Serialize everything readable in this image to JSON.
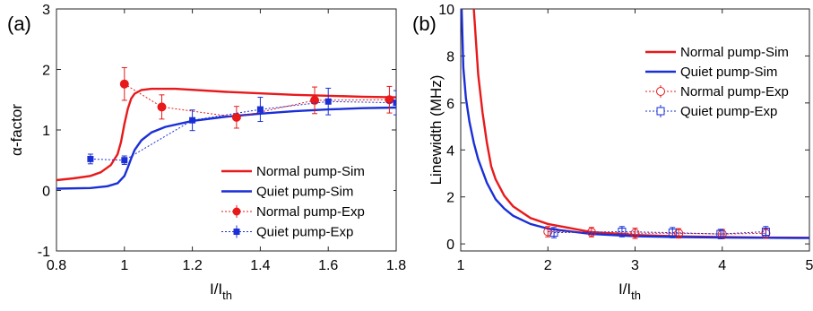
{
  "chart_data": [
    {
      "panel_label": "(a)",
      "type": "line",
      "xlabel": "I/I",
      "xlabel_sub": "th",
      "ylabel": "α-factor",
      "xlim": [
        0.8,
        1.8
      ],
      "ylim": [
        -1,
        3
      ],
      "xticks": [
        "0.8",
        "1",
        "1.2",
        "1.4",
        "1.6",
        "1.8"
      ],
      "yticks": [
        "-1",
        "0",
        "1",
        "2",
        "3"
      ],
      "legend_position": "bottom-right",
      "series": [
        {
          "name": "Normal pump-Sim",
          "style": "solid",
          "color": "#e8191b",
          "x": [
            0.8,
            0.85,
            0.9,
            0.93,
            0.96,
            0.98,
            0.99,
            1.0,
            1.01,
            1.02,
            1.03,
            1.05,
            1.08,
            1.15,
            1.3,
            1.5,
            1.7,
            1.8
          ],
          "y": [
            0.17,
            0.2,
            0.24,
            0.3,
            0.42,
            0.6,
            0.8,
            1.1,
            1.35,
            1.52,
            1.6,
            1.66,
            1.68,
            1.68,
            1.63,
            1.58,
            1.55,
            1.54
          ]
        },
        {
          "name": "Quiet pump-Sim",
          "style": "solid",
          "color": "#1a2fd6",
          "x": [
            0.8,
            0.9,
            0.95,
            0.98,
            1.0,
            1.01,
            1.02,
            1.03,
            1.05,
            1.08,
            1.12,
            1.2,
            1.3,
            1.4,
            1.5,
            1.6,
            1.7,
            1.8
          ],
          "y": [
            0.03,
            0.04,
            0.07,
            0.12,
            0.24,
            0.38,
            0.53,
            0.67,
            0.83,
            0.96,
            1.05,
            1.15,
            1.22,
            1.27,
            1.31,
            1.34,
            1.36,
            1.37
          ]
        },
        {
          "name": "Normal pump-Exp",
          "style": "dotted-markers",
          "marker": "circle",
          "color": "#e8191b",
          "x": [
            1.0,
            1.11,
            1.33,
            1.56,
            1.78
          ],
          "y": [
            1.76,
            1.38,
            1.21,
            1.49,
            1.5
          ],
          "err": [
            0.27,
            0.2,
            0.18,
            0.22,
            0.22
          ]
        },
        {
          "name": "Quiet pump-Exp",
          "style": "dotted-markers",
          "marker": "square",
          "color": "#1a2fd6",
          "x": [
            0.9,
            1.0,
            1.2,
            1.4,
            1.6,
            1.8
          ],
          "y": [
            0.52,
            0.5,
            1.16,
            1.34,
            1.47,
            1.45
          ],
          "err": [
            0.08,
            0.07,
            0.17,
            0.2,
            0.22,
            0.2
          ]
        }
      ]
    },
    {
      "panel_label": "(b)",
      "type": "line",
      "xlabel": "I/I",
      "xlabel_sub": "th",
      "ylabel": "Linewidth (MHz)",
      "xlim": [
        1,
        5
      ],
      "ylim": [
        -0.3,
        10
      ],
      "xticks": [
        "1",
        "2",
        "3",
        "4",
        "5"
      ],
      "yticks": [
        "0",
        "2",
        "4",
        "6",
        "8",
        "10"
      ],
      "legend_position": "top-right",
      "series": [
        {
          "name": "Normal pump-Sim",
          "style": "solid",
          "color": "#e8191b",
          "x": [
            1.15,
            1.2,
            1.25,
            1.3,
            1.35,
            1.4,
            1.5,
            1.6,
            1.8,
            2.0,
            2.5,
            3.0,
            3.5,
            4.0,
            4.5,
            5.0
          ],
          "y": [
            10,
            7.2,
            5.6,
            4.3,
            3.3,
            2.75,
            2.05,
            1.6,
            1.1,
            0.85,
            0.5,
            0.38,
            0.32,
            0.29,
            0.27,
            0.26
          ]
        },
        {
          "name": "Quiet pump-Sim",
          "style": "solid",
          "color": "#1a2fd6",
          "x": [
            1.01,
            1.03,
            1.06,
            1.1,
            1.15,
            1.2,
            1.3,
            1.4,
            1.5,
            1.6,
            1.8,
            2.0,
            2.5,
            3.0,
            3.5,
            4.0,
            4.5,
            5.0
          ],
          "y": [
            10,
            7.5,
            6.2,
            5.2,
            4.3,
            3.6,
            2.6,
            1.9,
            1.5,
            1.2,
            0.85,
            0.65,
            0.42,
            0.33,
            0.29,
            0.27,
            0.26,
            0.25
          ]
        },
        {
          "name": "Normal pump-Exp",
          "style": "dotted-markers",
          "marker": "open-circle",
          "color": "#e8191b",
          "x": [
            2.0,
            2.5,
            3.0,
            3.5,
            4.0,
            4.5
          ],
          "y": [
            0.52,
            0.5,
            0.45,
            0.45,
            0.42,
            0.45
          ],
          "err": [
            0.22,
            0.2,
            0.22,
            0.2,
            0.2,
            0.2
          ]
        },
        {
          "name": "Quiet pump-Exp",
          "style": "dotted-markers",
          "marker": "open-square",
          "color": "#1a2fd6",
          "x": [
            2.07,
            2.85,
            3.43,
            3.98,
            4.5
          ],
          "y": [
            0.48,
            0.52,
            0.48,
            0.42,
            0.52
          ],
          "err": [
            0.22,
            0.22,
            0.22,
            0.2,
            0.22
          ]
        }
      ]
    }
  ]
}
